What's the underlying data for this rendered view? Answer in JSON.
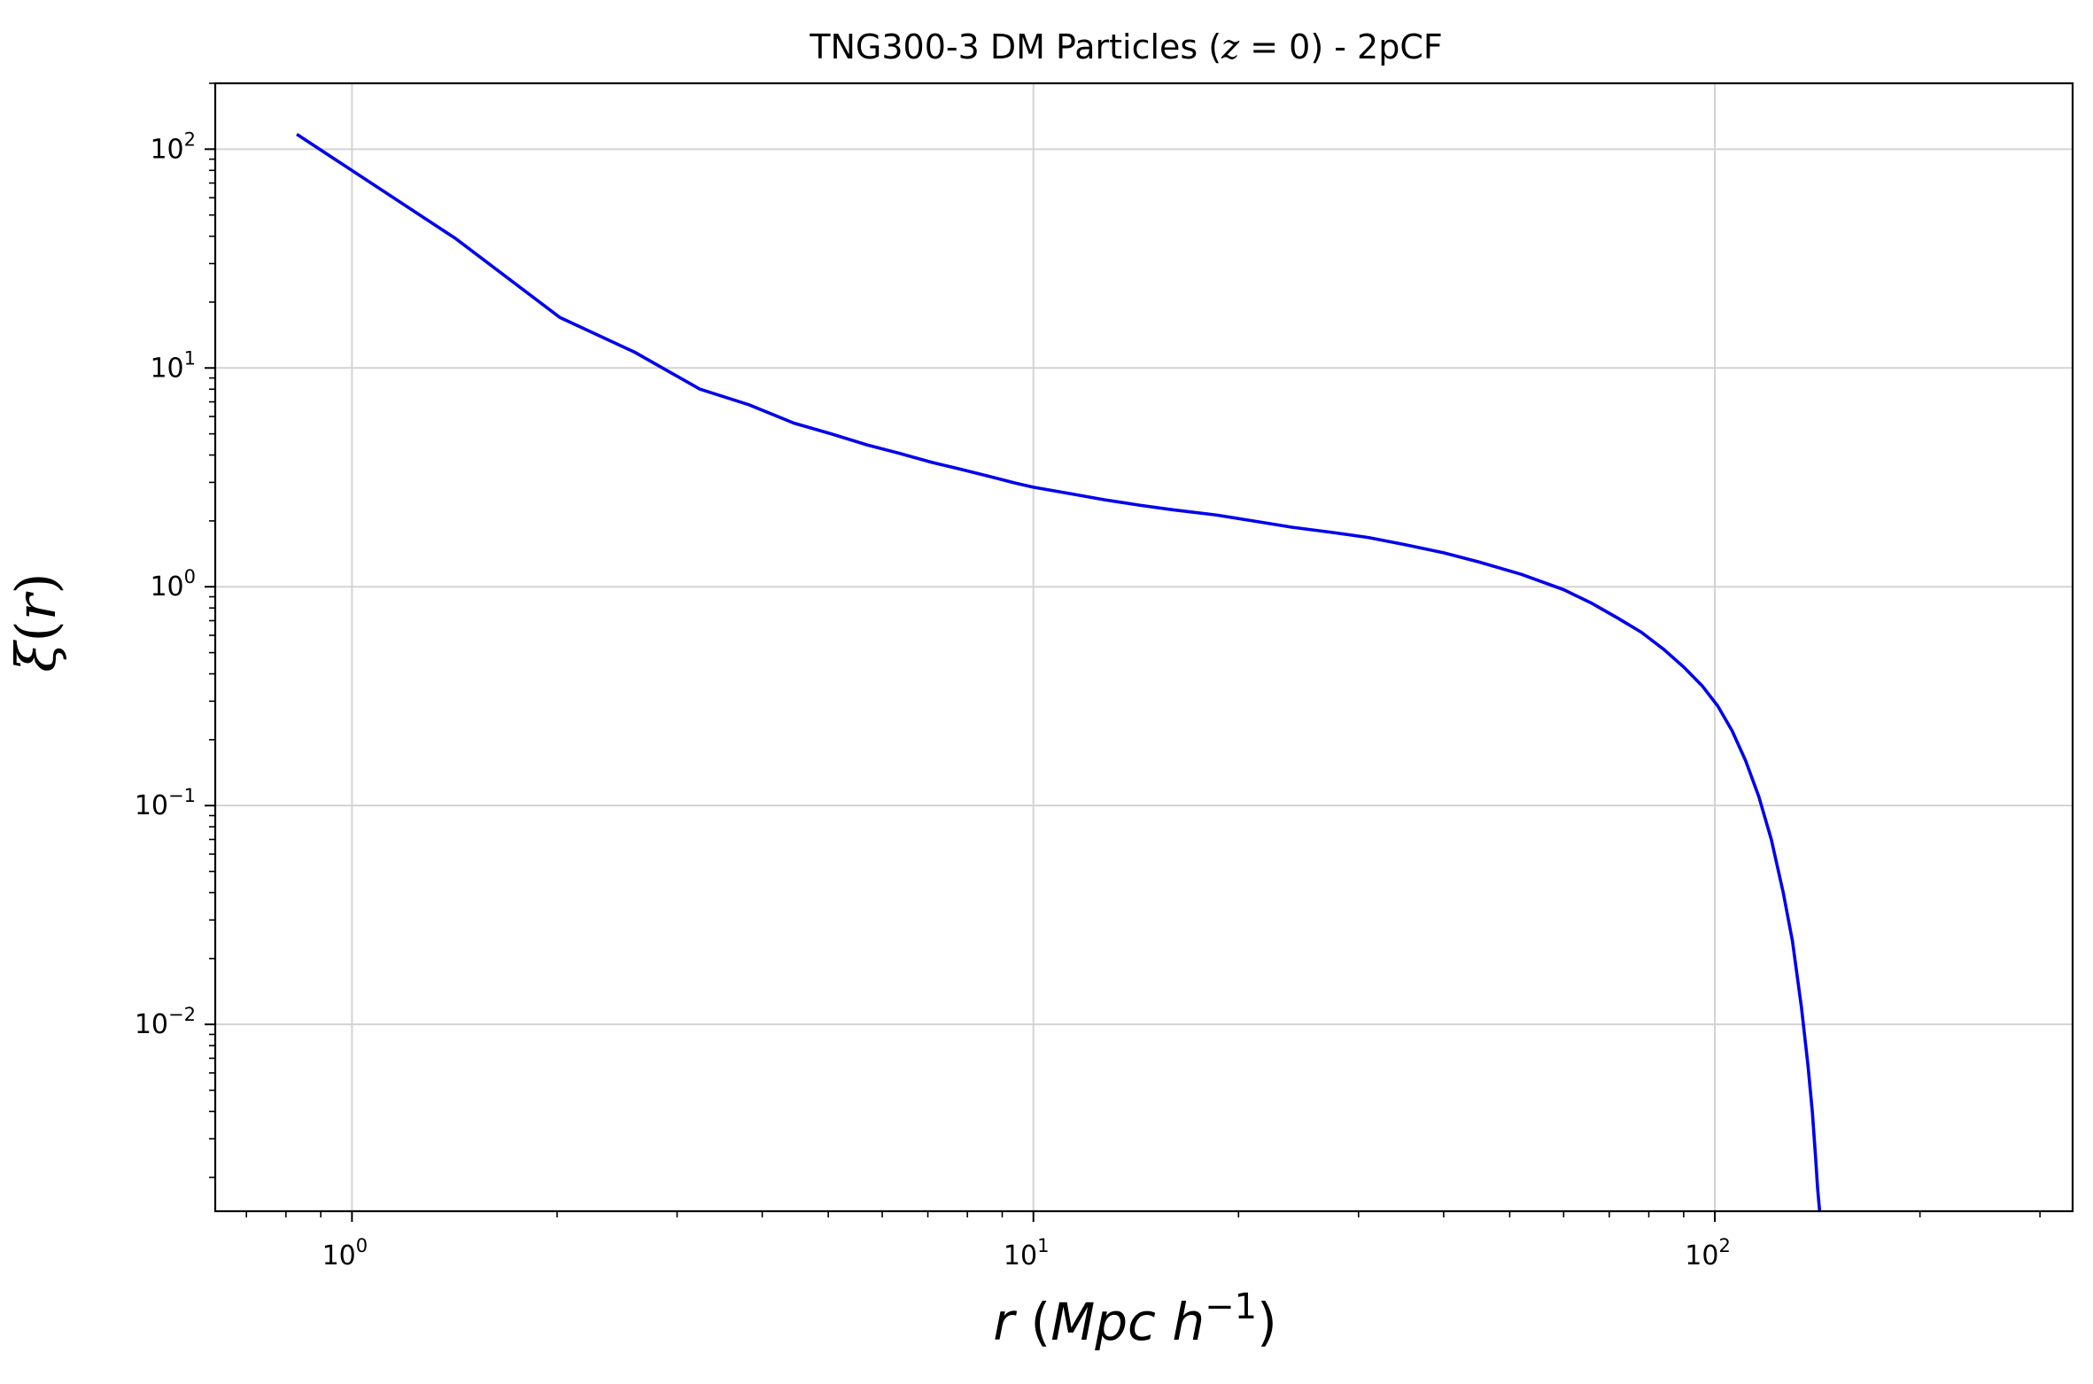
{
  "chart_data": {
    "type": "line",
    "title": "TNG300-3 DM Particles (z = 0) - 2pCF",
    "title_parts": {
      "pre": "TNG300-3 DM Particles (",
      "var": "z",
      "eq": " = 0",
      "post": ") - 2pCF"
    },
    "xlabel": "r (Mpc h⁻¹)",
    "xlabel_parts": {
      "var": "r",
      "open": " (",
      "unit": "Mpc h",
      "exp": "−1",
      "close": ")"
    },
    "ylabel": "ξ(r)",
    "ylabel_parts": {
      "sym": "ξ",
      "open": "(",
      "var": "r",
      "close": ")"
    },
    "xscale": "log",
    "yscale": "log",
    "xlim": [
      0.63,
      335
    ],
    "ylim": [
      0.0014,
      200
    ],
    "grid": true,
    "x_ticks": [
      {
        "base": "10",
        "exp": "0",
        "value": 1
      },
      {
        "base": "10",
        "exp": "1",
        "value": 10
      },
      {
        "base": "10",
        "exp": "2",
        "value": 100
      }
    ],
    "y_ticks": [
      {
        "base": "10",
        "exp": "2",
        "value": 100
      },
      {
        "base": "10",
        "exp": "1",
        "value": 10
      },
      {
        "base": "10",
        "exp": "0",
        "value": 1
      },
      {
        "base": "10",
        "exp": "−1",
        "value": 0.1
      },
      {
        "base": "10",
        "exp": "−2",
        "value": 0.01
      }
    ],
    "line_color": "#0000ee",
    "series": [
      {
        "x": [
          0.83,
          1.42,
          2.02,
          2.6,
          3.24,
          3.82,
          4.45,
          5.05,
          5.7,
          6.4,
          7.1,
          7.8,
          8.6,
          9.4,
          10.0,
          11.2,
          12.7,
          14.3,
          16.0,
          18.5,
          21.0,
          24.0,
          27.5,
          31.0,
          35.0,
          40.0,
          45.0,
          52.0,
          60.0,
          66.0,
          72.0,
          78.0,
          84.0,
          90.0,
          96.0,
          101.0,
          106.0,
          111.0,
          116.0,
          121.0,
          126.0,
          130.0,
          134.0,
          137.0,
          139.0,
          140.5,
          141.5,
          142.2,
          142.5
        ],
        "y": [
          117,
          39,
          17,
          11.8,
          8.0,
          6.8,
          5.6,
          5.0,
          4.45,
          4.05,
          3.7,
          3.45,
          3.2,
          2.98,
          2.85,
          2.68,
          2.5,
          2.36,
          2.25,
          2.13,
          2.0,
          1.87,
          1.77,
          1.68,
          1.56,
          1.43,
          1.3,
          1.14,
          0.97,
          0.84,
          0.72,
          0.62,
          0.52,
          0.43,
          0.35,
          0.285,
          0.22,
          0.16,
          0.11,
          0.07,
          0.04,
          0.024,
          0.012,
          0.0065,
          0.004,
          0.0025,
          0.0018,
          0.0015,
          0.0014
        ]
      }
    ]
  }
}
